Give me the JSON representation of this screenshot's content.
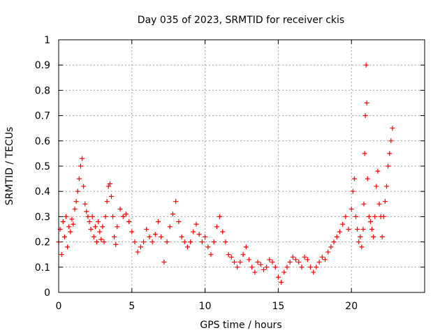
{
  "chart_data": {
    "type": "scatter",
    "title": "Day 035 of 2023, SRMTID for receiver ckis",
    "xlabel": "GPS time / hours",
    "ylabel": "SRMTID / TECUs",
    "xlim": [
      0,
      25
    ],
    "ylim": [
      0,
      1
    ],
    "xticks": [
      0,
      5,
      10,
      15,
      20
    ],
    "xtick_labels": [
      "0",
      "5",
      "10",
      "15",
      "20"
    ],
    "yticks": [
      0,
      0.1,
      0.2,
      0.3,
      0.4,
      0.5,
      0.6,
      0.7,
      0.8,
      0.9,
      1
    ],
    "ytick_labels": [
      "0",
      "0.1",
      "0.2",
      "0.3",
      "0.4",
      "0.5",
      "0.6",
      "0.7",
      "0.8",
      "0.9",
      "1"
    ],
    "grid": true,
    "marker": "plus",
    "marker_color": "#ff0000",
    "series": [
      {
        "name": "SRMTID",
        "x": [
          0.0,
          0.1,
          0.2,
          0.3,
          0.4,
          0.5,
          0.6,
          0.7,
          0.8,
          0.9,
          1.0,
          1.1,
          1.2,
          1.3,
          1.4,
          1.5,
          1.6,
          1.7,
          1.8,
          1.9,
          2.0,
          2.1,
          2.2,
          2.3,
          2.4,
          2.5,
          2.6,
          2.7,
          2.8,
          2.9,
          3.0,
          3.1,
          3.2,
          3.3,
          3.4,
          3.5,
          3.6,
          3.7,
          3.8,
          3.9,
          4.0,
          4.2,
          4.4,
          4.6,
          4.8,
          5.0,
          5.2,
          5.4,
          5.6,
          5.8,
          6.0,
          6.2,
          6.4,
          6.6,
          6.8,
          7.0,
          7.2,
          7.4,
          7.6,
          7.8,
          8.0,
          8.2,
          8.4,
          8.6,
          8.8,
          9.0,
          9.2,
          9.4,
          9.6,
          9.8,
          10.0,
          10.2,
          10.4,
          10.6,
          10.8,
          11.0,
          11.2,
          11.4,
          11.6,
          11.8,
          12.0,
          12.2,
          12.4,
          12.6,
          12.8,
          13.0,
          13.2,
          13.4,
          13.6,
          13.8,
          14.0,
          14.2,
          14.4,
          14.6,
          14.8,
          15.0,
          15.2,
          15.4,
          15.6,
          15.8,
          16.0,
          16.2,
          16.4,
          16.6,
          16.8,
          17.0,
          17.2,
          17.4,
          17.6,
          17.8,
          18.0,
          18.2,
          18.4,
          18.6,
          18.8,
          19.0,
          19.2,
          19.4,
          19.6,
          19.8,
          20.0,
          20.1,
          20.2,
          20.3,
          20.4,
          20.5,
          20.6,
          20.7,
          20.8,
          20.85,
          20.9,
          20.95,
          21.0,
          21.05,
          21.1,
          21.2,
          21.3,
          21.4,
          21.5,
          21.6,
          21.7,
          21.8,
          21.9,
          22.0,
          22.1,
          22.2,
          22.3,
          22.4,
          22.5,
          22.6,
          22.7,
          22.8
        ],
        "y": [
          0.2,
          0.25,
          0.15,
          0.28,
          0.22,
          0.3,
          0.18,
          0.26,
          0.24,
          0.29,
          0.27,
          0.33,
          0.36,
          0.4,
          0.45,
          0.5,
          0.53,
          0.42,
          0.35,
          0.32,
          0.3,
          0.28,
          0.25,
          0.3,
          0.22,
          0.26,
          0.2,
          0.28,
          0.24,
          0.21,
          0.26,
          0.2,
          0.3,
          0.36,
          0.42,
          0.43,
          0.38,
          0.3,
          0.22,
          0.19,
          0.26,
          0.33,
          0.3,
          0.31,
          0.28,
          0.24,
          0.2,
          0.16,
          0.18,
          0.2,
          0.25,
          0.22,
          0.2,
          0.23,
          0.28,
          0.22,
          0.12,
          0.2,
          0.26,
          0.31,
          0.36,
          0.28,
          0.22,
          0.2,
          0.18,
          0.2,
          0.24,
          0.27,
          0.23,
          0.2,
          0.22,
          0.18,
          0.15,
          0.2,
          0.26,
          0.3,
          0.24,
          0.2,
          0.15,
          0.14,
          0.12,
          0.1,
          0.12,
          0.15,
          0.18,
          0.13,
          0.1,
          0.08,
          0.12,
          0.11,
          0.09,
          0.1,
          0.13,
          0.12,
          0.1,
          0.06,
          0.04,
          0.08,
          0.1,
          0.12,
          0.14,
          0.13,
          0.12,
          0.1,
          0.14,
          0.13,
          0.1,
          0.08,
          0.1,
          0.12,
          0.14,
          0.13,
          0.16,
          0.18,
          0.2,
          0.22,
          0.24,
          0.27,
          0.3,
          0.25,
          0.33,
          0.4,
          0.45,
          0.3,
          0.25,
          0.2,
          0.22,
          0.18,
          0.25,
          0.35,
          0.55,
          0.7,
          0.9,
          0.75,
          0.45,
          0.3,
          0.28,
          0.25,
          0.22,
          0.3,
          0.42,
          0.48,
          0.35,
          0.3,
          0.22,
          0.3,
          0.36,
          0.42,
          0.5,
          0.55,
          0.6,
          0.65
        ]
      }
    ]
  }
}
